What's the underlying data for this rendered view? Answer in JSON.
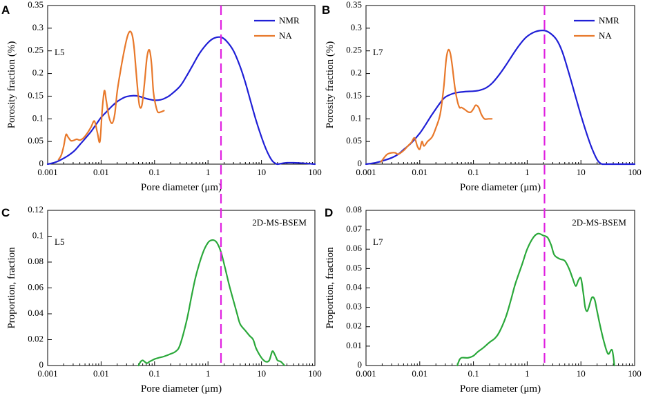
{
  "chart_data": [
    {
      "type": "line",
      "panel": "A",
      "sample_label": "L5",
      "xlabel": "Pore diameter (μm)",
      "ylabel": "Porosity fraction (%)",
      "xscale": "log",
      "xlim": [
        0.001,
        100
      ],
      "ylim": [
        0,
        0.35
      ],
      "x_ticks": [
        "0.001",
        "0.01",
        "0.1",
        "1",
        "10",
        "100"
      ],
      "y_ticks": [
        "0",
        "0.05",
        "0.1",
        "0.15",
        "0.2",
        "0.25",
        "0.3",
        "0.35"
      ],
      "legend_position": "top-right",
      "reference_line": {
        "x": 1.75,
        "color": "#e020e0",
        "style": "dashed"
      },
      "series": [
        {
          "name": "NMR",
          "color": "#1f1fd6",
          "x": [
            0.001,
            0.0013,
            0.0016,
            0.002,
            0.0025,
            0.0032,
            0.004,
            0.005,
            0.0065,
            0.008,
            0.01,
            0.013,
            0.016,
            0.02,
            0.025,
            0.03,
            0.04,
            0.05,
            0.06,
            0.08,
            0.1,
            0.13,
            0.16,
            0.2,
            0.3,
            0.4,
            0.5,
            0.7,
            1.0,
            1.3,
            1.75,
            2.2,
            3.0,
            4.0,
            5.0,
            6.5,
            8.0,
            10.0,
            12.0,
            14.0,
            16.0,
            18.0,
            20.0,
            25.0,
            30.0,
            40.0,
            60.0,
            100.0
          ],
          "y": [
            0,
            0.003,
            0.007,
            0.013,
            0.02,
            0.03,
            0.043,
            0.056,
            0.072,
            0.087,
            0.103,
            0.117,
            0.128,
            0.138,
            0.145,
            0.149,
            0.151,
            0.15,
            0.147,
            0.143,
            0.141,
            0.142,
            0.146,
            0.153,
            0.172,
            0.195,
            0.215,
            0.245,
            0.268,
            0.278,
            0.28,
            0.272,
            0.25,
            0.215,
            0.18,
            0.132,
            0.095,
            0.06,
            0.035,
            0.018,
            0.007,
            0.002,
            0,
            0.002,
            0.003,
            0.003,
            0.002,
            0
          ]
        },
        {
          "name": "NA",
          "color": "#e8782a",
          "x": [
            0.0016,
            0.0018,
            0.002,
            0.0022,
            0.0024,
            0.0027,
            0.003,
            0.0035,
            0.004,
            0.0047,
            0.0055,
            0.0065,
            0.0075,
            0.0085,
            0.0095,
            0.0105,
            0.0115,
            0.0125,
            0.014,
            0.016,
            0.018,
            0.02,
            0.023,
            0.026,
            0.03,
            0.033,
            0.036,
            0.039,
            0.042,
            0.047,
            0.052,
            0.058,
            0.065,
            0.072,
            0.08,
            0.088,
            0.095,
            0.105,
            0.115,
            0.13,
            0.15
          ],
          "y": [
            0.01,
            0.02,
            0.04,
            0.065,
            0.06,
            0.052,
            0.052,
            0.055,
            0.053,
            0.058,
            0.068,
            0.082,
            0.095,
            0.07,
            0.05,
            0.12,
            0.162,
            0.14,
            0.105,
            0.09,
            0.11,
            0.16,
            0.205,
            0.24,
            0.275,
            0.29,
            0.292,
            0.28,
            0.25,
            0.18,
            0.13,
            0.13,
            0.18,
            0.235,
            0.252,
            0.22,
            0.16,
            0.13,
            0.115,
            0.115,
            0.118
          ]
        }
      ]
    },
    {
      "type": "line",
      "panel": "B",
      "sample_label": "L7",
      "xlabel": "Pore diameter (μm)",
      "ylabel": "Porosity fraction (%)",
      "xscale": "log",
      "xlim": [
        0.001,
        100
      ],
      "ylim": [
        0,
        0.35
      ],
      "x_ticks": [
        "0.001",
        "0.01",
        "0.1",
        "1",
        "10",
        "100"
      ],
      "y_ticks": [
        "0",
        "0.05",
        "0.1",
        "0.15",
        "0.2",
        "0.25",
        "0.3",
        "0.35"
      ],
      "legend_position": "top-right",
      "reference_line": {
        "x": 2.1,
        "color": "#e020e0",
        "style": "dashed"
      },
      "series": [
        {
          "name": "NMR",
          "color": "#1f1fd6",
          "x": [
            0.001,
            0.0015,
            0.002,
            0.003,
            0.004,
            0.005,
            0.007,
            0.01,
            0.013,
            0.016,
            0.02,
            0.025,
            0.03,
            0.04,
            0.05,
            0.07,
            0.1,
            0.13,
            0.17,
            0.22,
            0.3,
            0.4,
            0.6,
            0.8,
            1.0,
            1.4,
            2.0,
            2.6,
            3.5,
            4.5,
            6.0,
            8.0,
            10.0,
            13.0,
            16.0,
            20.0,
            23.0,
            25.0,
            30.0,
            50.0,
            100.0
          ],
          "y": [
            0,
            0.003,
            0.007,
            0.014,
            0.022,
            0.032,
            0.047,
            0.068,
            0.088,
            0.105,
            0.122,
            0.138,
            0.148,
            0.155,
            0.158,
            0.16,
            0.161,
            0.163,
            0.168,
            0.178,
            0.197,
            0.218,
            0.25,
            0.27,
            0.282,
            0.292,
            0.295,
            0.29,
            0.275,
            0.248,
            0.2,
            0.148,
            0.108,
            0.065,
            0.035,
            0.01,
            0.002,
            0,
            0,
            0,
            0
          ]
        },
        {
          "name": "NA",
          "color": "#e8782a",
          "x": [
            0.0019,
            0.0022,
            0.0025,
            0.003,
            0.0035,
            0.004,
            0.005,
            0.006,
            0.007,
            0.008,
            0.009,
            0.01,
            0.011,
            0.012,
            0.014,
            0.017,
            0.02,
            0.024,
            0.028,
            0.031,
            0.034,
            0.037,
            0.04,
            0.045,
            0.05,
            0.055,
            0.06,
            0.07,
            0.08,
            0.09,
            0.1,
            0.11,
            0.125,
            0.14,
            0.16,
            0.19,
            0.22
          ],
          "y": [
            0.005,
            0.015,
            0.022,
            0.025,
            0.025,
            0.022,
            0.03,
            0.04,
            0.048,
            0.058,
            0.04,
            0.033,
            0.05,
            0.04,
            0.05,
            0.06,
            0.08,
            0.11,
            0.17,
            0.23,
            0.252,
            0.245,
            0.22,
            0.17,
            0.14,
            0.125,
            0.125,
            0.12,
            0.115,
            0.115,
            0.122,
            0.13,
            0.125,
            0.11,
            0.1,
            0.1,
            0.1
          ]
        }
      ]
    },
    {
      "type": "line",
      "panel": "C",
      "sample_label": "L5",
      "xlabel": "Pore diameter (μm)",
      "ylabel": "Proportion, fraction",
      "xscale": "log",
      "xlim": [
        0.001,
        100
      ],
      "ylim": [
        0,
        0.12
      ],
      "x_ticks": [
        "0.001",
        "0.01",
        "0.1",
        "1",
        "10",
        "100"
      ],
      "y_ticks": [
        "0",
        "0.02",
        "0.04",
        "0.06",
        "0.08",
        "0.1",
        "0.12"
      ],
      "reference_line": {
        "x": 1.75,
        "color": "#e020e0",
        "style": "dashed"
      },
      "series": [
        {
          "name": "2D-MS-BSEM",
          "color": "#2aa83a",
          "x": [
            0.05,
            0.055,
            0.06,
            0.065,
            0.07,
            0.075,
            0.08,
            0.09,
            0.1,
            0.12,
            0.15,
            0.2,
            0.25,
            0.3,
            0.4,
            0.5,
            0.6,
            0.8,
            1.0,
            1.2,
            1.4,
            1.6,
            1.8,
            2.1,
            2.5,
            3.0,
            3.5,
            4.0,
            5.0,
            6.0,
            7.0,
            8.0,
            10.0,
            12.0,
            14.0,
            16.0,
            18.0,
            20.0,
            23.0,
            27.0
          ],
          "y": [
            0,
            0.003,
            0.004,
            0.003,
            0.002,
            0.002,
            0.003,
            0.004,
            0.005,
            0.006,
            0.007,
            0.009,
            0.011,
            0.016,
            0.035,
            0.055,
            0.07,
            0.087,
            0.095,
            0.097,
            0.096,
            0.092,
            0.086,
            0.075,
            0.062,
            0.05,
            0.04,
            0.032,
            0.027,
            0.023,
            0.02,
            0.013,
            0.006,
            0.003,
            0.004,
            0.011,
            0.008,
            0.004,
            0.003,
            0
          ]
        }
      ]
    },
    {
      "type": "line",
      "panel": "D",
      "sample_label": "L7",
      "xlabel": "Pore diameter (μm)",
      "ylabel": "Proportion, fraction",
      "xscale": "log",
      "xlim": [
        0.001,
        100
      ],
      "ylim": [
        0,
        0.08
      ],
      "x_ticks": [
        "0.001",
        "0.01",
        "0.1",
        "1",
        "10",
        "100"
      ],
      "y_ticks": [
        "0",
        "0.01",
        "0.02",
        "0.03",
        "0.04",
        "0.05",
        "0.06",
        "0.07",
        "0.08"
      ],
      "reference_line": {
        "x": 2.1,
        "color": "#e020e0",
        "style": "dashed"
      },
      "series": [
        {
          "name": "2D-MS-BSEM",
          "color": "#2aa83a",
          "x": [
            0.05,
            0.055,
            0.06,
            0.07,
            0.08,
            0.1,
            0.12,
            0.15,
            0.2,
            0.25,
            0.3,
            0.4,
            0.5,
            0.6,
            0.8,
            1.0,
            1.3,
            1.6,
            2.0,
            2.4,
            2.8,
            3.2,
            4.0,
            5.0,
            6.0,
            7.0,
            8.0,
            9.0,
            10.0,
            11.0,
            12.0,
            13.0,
            14.0,
            16.0,
            18.0,
            20.0,
            23.0,
            27.0,
            32.0,
            38.0,
            42.0
          ],
          "y": [
            0,
            0.003,
            0.004,
            0.004,
            0.004,
            0.005,
            0.007,
            0.009,
            0.012,
            0.014,
            0.017,
            0.025,
            0.034,
            0.042,
            0.052,
            0.06,
            0.066,
            0.068,
            0.067,
            0.066,
            0.062,
            0.057,
            0.055,
            0.054,
            0.05,
            0.045,
            0.041,
            0.044,
            0.045,
            0.038,
            0.03,
            0.028,
            0.03,
            0.035,
            0.034,
            0.028,
            0.02,
            0.012,
            0.006,
            0.008,
            0
          ]
        }
      ]
    }
  ]
}
